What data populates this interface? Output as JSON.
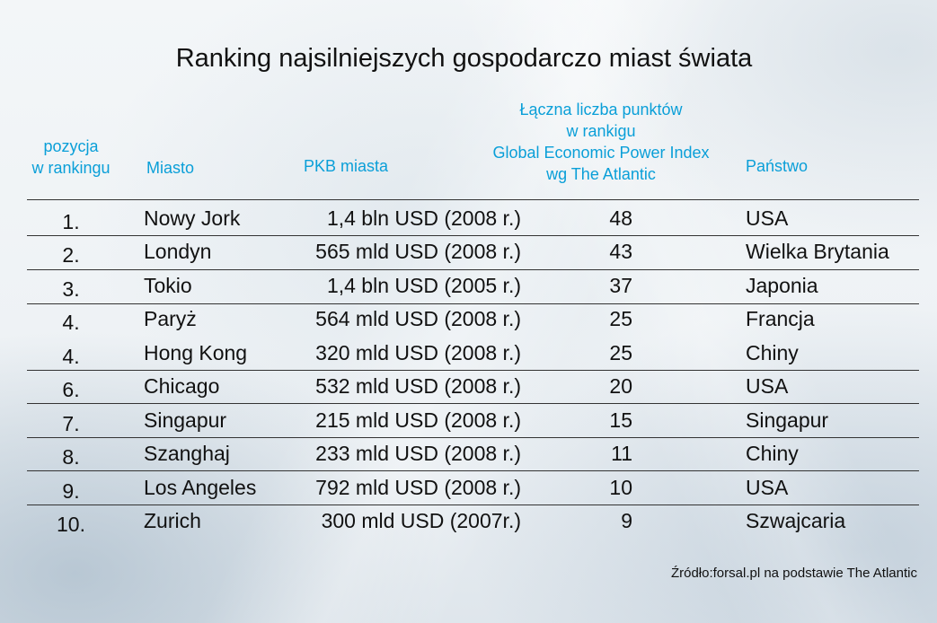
{
  "title": "Ranking najsilniejszych gospodarczo miast świata",
  "headers": {
    "position": [
      "pozycja",
      "w rankingu"
    ],
    "city": "Miasto",
    "gdp": "PKB miasta",
    "points": [
      "Łączna liczba punktów",
      "w rankigu",
      "Global Economic Power Index",
      "wg The Atlantic"
    ],
    "country": "Państwo"
  },
  "rows": [
    {
      "pos": "1.",
      "city": "Nowy Jork",
      "gdp": "1,4 bln USD (2008 r.)",
      "points": "48",
      "country": "USA"
    },
    {
      "pos": "2.",
      "city": "Londyn",
      "gdp": "565 mld USD (2008 r.)",
      "points": "43",
      "country": "Wielka Brytania"
    },
    {
      "pos": "3.",
      "city": "Tokio",
      "gdp": "1,4 bln USD (2005 r.)",
      "points": "37",
      "country": "Japonia"
    },
    {
      "pos": "4.",
      "city": "Paryż",
      "gdp": "564 mld USD (2008 r.)",
      "points": "25",
      "country": "Francja"
    },
    {
      "pos": "4.",
      "city": "Hong Kong",
      "gdp": "320 mld USD (2008 r.)",
      "points": "25",
      "country": "Chiny"
    },
    {
      "pos": "6.",
      "city": "Chicago",
      "gdp": "532 mld USD (2008 r.)",
      "points": "20",
      "country": "USA"
    },
    {
      "pos": "7.",
      "city": "Singapur",
      "gdp": "215 mld USD (2008 r.)",
      "points": "15",
      "country": "Singapur"
    },
    {
      "pos": "8.",
      "city": "Szanghaj",
      "gdp": "233 mld USD (2008 r.)",
      "points": "11",
      "country": "Chiny"
    },
    {
      "pos": "9.",
      "city": "Los Angeles",
      "gdp": "792 mld USD (2008 r.)",
      "points": "10",
      "country": "USA"
    },
    {
      "pos": "10.",
      "city": "Zurich",
      "gdp": "300 mld USD (2007r.)",
      "points": "9",
      "country": "Szwajcaria"
    }
  ],
  "source": "Źródło:forsal.pl na podstawie The Atlantic"
}
